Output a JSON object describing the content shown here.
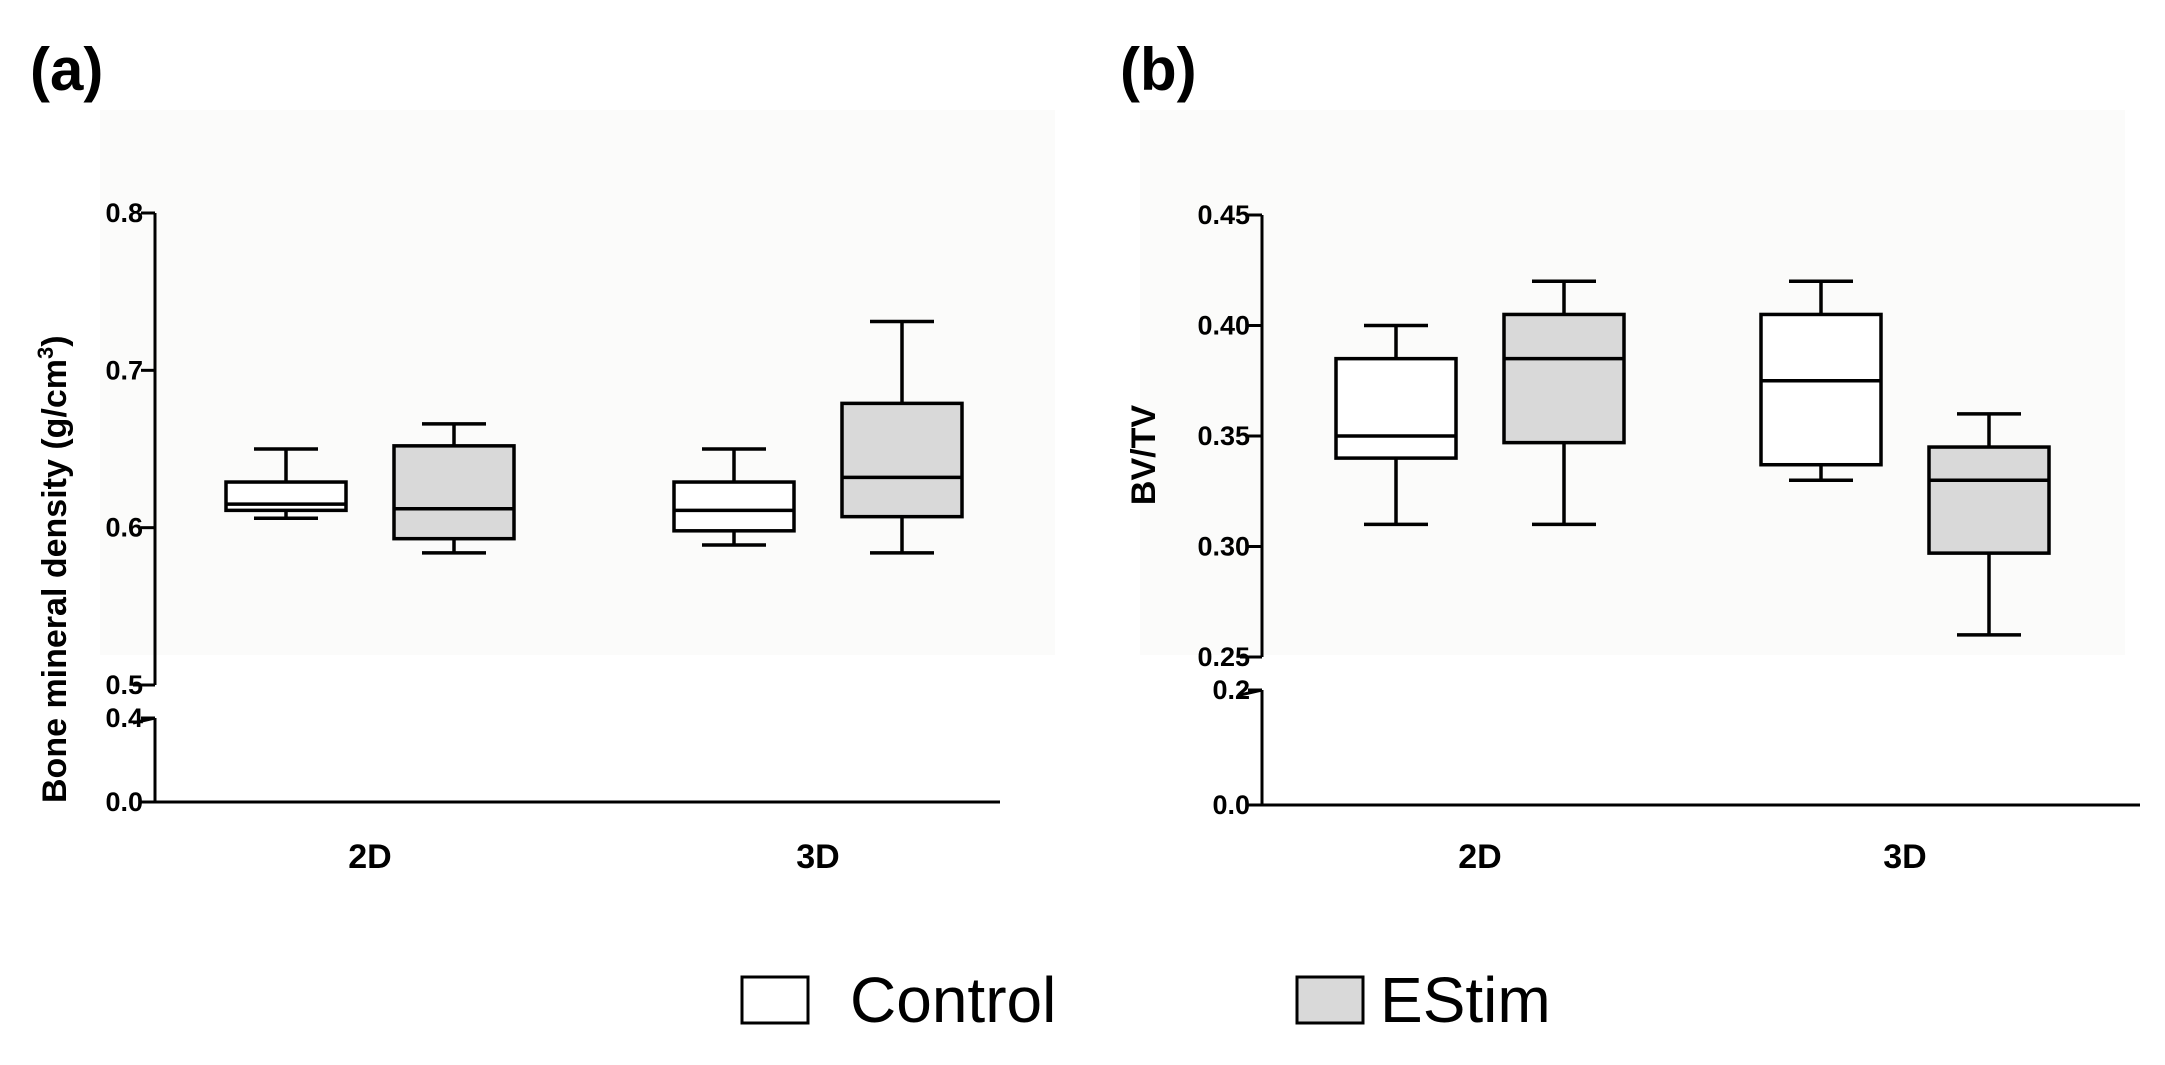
{
  "legend": [
    {
      "name": "Control",
      "color": "#ffffff"
    },
    {
      "name": "EStim",
      "color": "#d9d9d9"
    }
  ],
  "chart_data": [
    {
      "type": "box",
      "panel": "(a)",
      "title": "",
      "xlabel": "",
      "ylabel": "Bone mineral density (g/cm",
      "ylabel_sup": "3",
      "ylabel_end": ")",
      "categories": [
        "2D",
        "3D"
      ],
      "y_axis_break": true,
      "yticks_lower": [
        "0.0",
        "0.4"
      ],
      "yticks_upper": [
        "0.5",
        "0.6",
        "0.7",
        "0.8"
      ],
      "ylim_lower": [
        0.0,
        0.4
      ],
      "ylim_upper": [
        0.5,
        0.8
      ],
      "series": [
        {
          "name": "Control",
          "boxes": [
            {
              "category": "2D",
              "min": 0.606,
              "q1": 0.611,
              "median": 0.615,
              "q3": 0.629,
              "max": 0.65
            },
            {
              "category": "3D",
              "min": 0.589,
              "q1": 0.598,
              "median": 0.611,
              "q3": 0.629,
              "max": 0.65
            }
          ]
        },
        {
          "name": "EStim",
          "boxes": [
            {
              "category": "2D",
              "min": 0.584,
              "q1": 0.593,
              "median": 0.612,
              "q3": 0.652,
              "max": 0.666
            },
            {
              "category": "3D",
              "min": 0.584,
              "q1": 0.607,
              "median": 0.632,
              "q3": 0.679,
              "max": 0.731
            }
          ]
        }
      ]
    },
    {
      "type": "box",
      "panel": "(b)",
      "title": "",
      "xlabel": "",
      "ylabel": "BV/TV",
      "ylabel_sup": "",
      "ylabel_end": "",
      "categories": [
        "2D",
        "3D"
      ],
      "y_axis_break": true,
      "yticks_lower": [
        "0.0",
        "0.2"
      ],
      "yticks_upper": [
        "0.25",
        "0.30",
        "0.35",
        "0.40",
        "0.45"
      ],
      "ylim_lower": [
        0.0,
        0.2
      ],
      "ylim_upper": [
        0.25,
        0.45
      ],
      "series": [
        {
          "name": "Control",
          "boxes": [
            {
              "category": "2D",
              "min": 0.31,
              "q1": 0.34,
              "median": 0.35,
              "q3": 0.385,
              "max": 0.4
            },
            {
              "category": "3D",
              "min": 0.33,
              "q1": 0.337,
              "median": 0.375,
              "q3": 0.405,
              "max": 0.42
            }
          ]
        },
        {
          "name": "EStim",
          "boxes": [
            {
              "category": "2D",
              "min": 0.31,
              "q1": 0.347,
              "median": 0.385,
              "q3": 0.405,
              "max": 0.42
            },
            {
              "category": "3D",
              "min": 0.26,
              "q1": 0.297,
              "median": 0.33,
              "q3": 0.345,
              "max": 0.36
            }
          ]
        }
      ]
    }
  ]
}
